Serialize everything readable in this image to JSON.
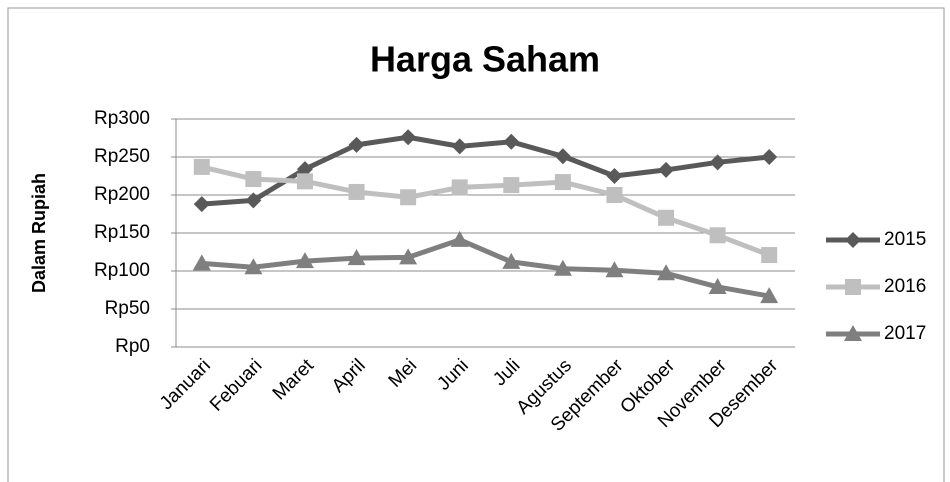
{
  "chart_data": {
    "type": "line",
    "title": "Harga Saham",
    "y_label": "Dalam Rupiah",
    "categories": [
      "Januari",
      "Febuari",
      "Maret",
      "April",
      "Mei",
      "Juni",
      "Juli",
      "Agustus",
      "September",
      "Oktober",
      "November",
      "Desember"
    ],
    "series": [
      {
        "name": "2015",
        "color": "#595959",
        "marker": "diamond",
        "values": [
          188,
          193,
          234,
          266,
          276,
          264,
          270,
          251,
          225,
          233,
          243,
          250
        ]
      },
      {
        "name": "2016",
        "color": "#bfbfbf",
        "marker": "square",
        "values": [
          237,
          221,
          218,
          204,
          197,
          210,
          213,
          217,
          200,
          170,
          147,
          121
        ]
      },
      {
        "name": "2017",
        "color": "#7f7f7f",
        "marker": "triangle",
        "values": [
          110,
          105,
          113,
          117,
          118,
          141,
          112,
          103,
          101,
          97,
          79,
          67
        ]
      }
    ],
    "ylim": [
      0,
      300
    ],
    "yticks": [
      {
        "value": 0,
        "label": "Rp0"
      },
      {
        "value": 50,
        "label": "Rp50"
      },
      {
        "value": 100,
        "label": "Rp100"
      },
      {
        "value": 150,
        "label": "Rp150"
      },
      {
        "value": 200,
        "label": "Rp200"
      },
      {
        "value": 250,
        "label": "Rp250"
      },
      {
        "value": 300,
        "label": "Rp300"
      }
    ],
    "grid": true,
    "legend": "right"
  }
}
